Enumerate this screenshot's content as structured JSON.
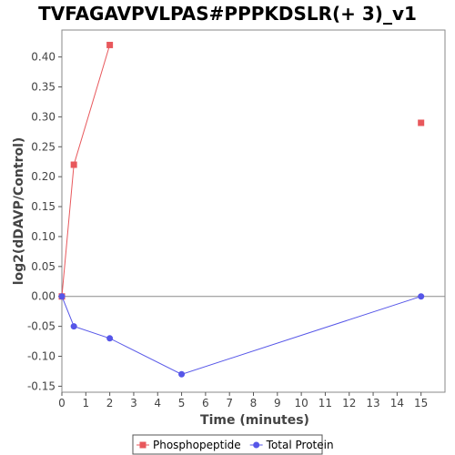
{
  "chart_data": {
    "type": "line",
    "title": "TVFAGAVPVLPAS#PPPKDSLR(+ 3)_v1",
    "xlabel": "Time (minutes)",
    "ylabel": "log2(dDAVP/Control)",
    "xlim": [
      0,
      16
    ],
    "ylim": [
      -0.16,
      0.445
    ],
    "x_ticks": [
      0,
      1,
      2,
      3,
      4,
      5,
      6,
      7,
      8,
      9,
      10,
      11,
      12,
      13,
      14,
      15
    ],
    "x_tick_labels": [
      "0",
      "1",
      "2",
      "3",
      "4",
      "5",
      "6",
      "7",
      "8",
      "9",
      "10",
      "11",
      "12",
      "13",
      "14",
      "15"
    ],
    "y_ticks": [
      -0.15,
      -0.1,
      -0.05,
      0.0,
      0.05,
      0.1,
      0.15,
      0.2,
      0.25,
      0.3,
      0.35,
      0.4
    ],
    "y_tick_labels": [
      "-0.15",
      "-0.10",
      "-0.05",
      "0.00",
      "0.05",
      "0.10",
      "0.15",
      "0.20",
      "0.25",
      "0.30",
      "0.35",
      "0.40"
    ],
    "zero_line": true,
    "grid": false,
    "legend_position": "bottom-center",
    "series": [
      {
        "name": "Phosphopeptide",
        "color": "#e8585c",
        "marker": "square",
        "points": [
          [
            0,
            0.0
          ],
          [
            0.5,
            0.22
          ],
          [
            2,
            0.42
          ],
          [
            15,
            0.29
          ]
        ],
        "connected_through_index": 2
      },
      {
        "name": "Total Protein",
        "color": "#5656e8",
        "marker": "circle",
        "points": [
          [
            0,
            0.0
          ],
          [
            0.5,
            -0.05
          ],
          [
            2,
            -0.07
          ],
          [
            5,
            -0.13
          ],
          [
            15,
            0.0
          ]
        ],
        "connected_through_index": 4
      }
    ]
  }
}
